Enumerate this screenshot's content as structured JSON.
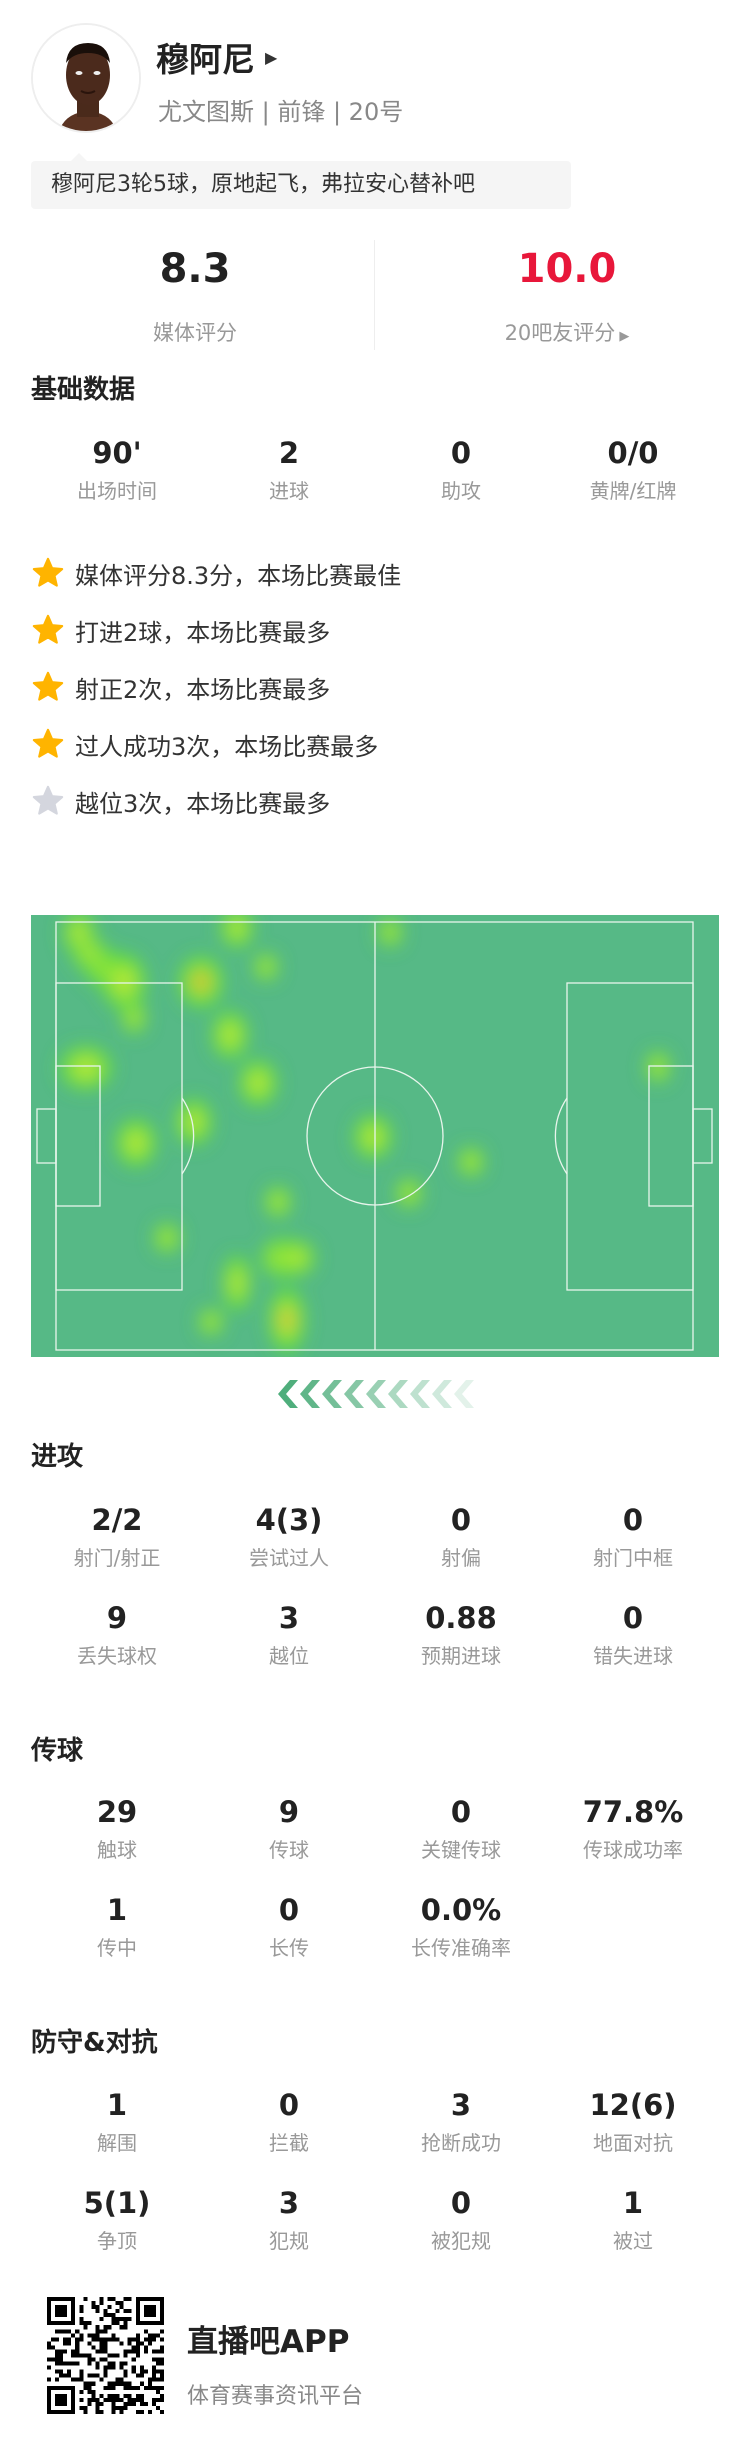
{
  "player": {
    "name": "穆阿尼",
    "subtitle": "尤文图斯 | 前锋 | 20号",
    "tagline": "穆阿尼3轮5球，原地起飞，弗拉安心替补吧"
  },
  "ratings": {
    "media": {
      "value": "8.3",
      "label": "媒体评分"
    },
    "fans": {
      "value": "10.0",
      "label": "20吧友评分",
      "color": "#e8173a"
    }
  },
  "basic": {
    "title": "基础数据",
    "stats": [
      {
        "value": "90'",
        "label": "出场时间"
      },
      {
        "value": "2",
        "label": "进球"
      },
      {
        "value": "0",
        "label": "助攻"
      },
      {
        "value": "0/0",
        "label": "黄牌/红牌"
      }
    ]
  },
  "highlights": [
    {
      "text": "媒体评分8.3分，本场比赛最佳",
      "star": "gold"
    },
    {
      "text": "打进2球，本场比赛最多",
      "star": "gold"
    },
    {
      "text": "射正2次，本场比赛最多",
      "star": "gold"
    },
    {
      "text": "过人成功3次，本场比赛最多",
      "star": "gold"
    },
    {
      "text": "越位3次，本场比赛最多",
      "star": "silver"
    }
  ],
  "heatmap": {
    "pitch_color": "#56b986",
    "attack_direction": "left"
  },
  "attack": {
    "title": "进攻",
    "stats": [
      {
        "value": "2/2",
        "label": "射门/射正"
      },
      {
        "value": "4(3)",
        "label": "尝试过人"
      },
      {
        "value": "0",
        "label": "射偏"
      },
      {
        "value": "0",
        "label": "射门中框"
      },
      {
        "value": "9",
        "label": "丢失球权"
      },
      {
        "value": "3",
        "label": "越位"
      },
      {
        "value": "0.88",
        "label": "预期进球"
      },
      {
        "value": "0",
        "label": "错失进球"
      }
    ]
  },
  "passing": {
    "title": "传球",
    "stats": [
      {
        "value": "29",
        "label": "触球"
      },
      {
        "value": "9",
        "label": "传球"
      },
      {
        "value": "0",
        "label": "关键传球"
      },
      {
        "value": "77.8%",
        "label": "传球成功率"
      },
      {
        "value": "1",
        "label": "传中"
      },
      {
        "value": "0",
        "label": "长传"
      },
      {
        "value": "0.0%",
        "label": "长传准确率"
      }
    ]
  },
  "defense": {
    "title": "防守&对抗",
    "stats": [
      {
        "value": "1",
        "label": "解围"
      },
      {
        "value": "0",
        "label": "拦截"
      },
      {
        "value": "3",
        "label": "抢断成功"
      },
      {
        "value": "12(6)",
        "label": "地面对抗"
      },
      {
        "value": "5(1)",
        "label": "争顶"
      },
      {
        "value": "3",
        "label": "犯规"
      },
      {
        "value": "0",
        "label": "被犯规"
      },
      {
        "value": "1",
        "label": "被过"
      }
    ]
  },
  "footer": {
    "app_name": "直播吧APP",
    "app_desc": "体育赛事资讯平台"
  }
}
